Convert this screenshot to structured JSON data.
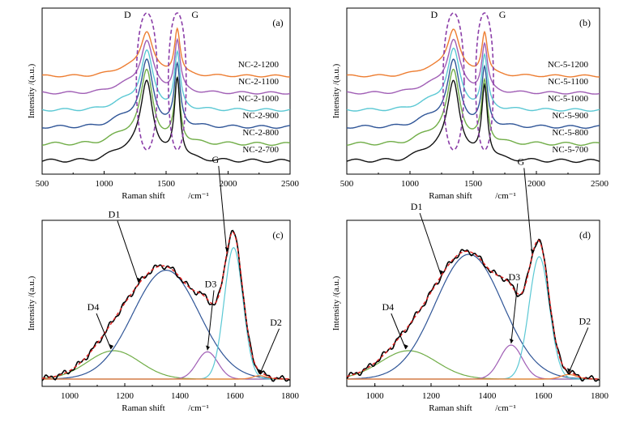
{
  "chart_data": [
    {
      "type": "line",
      "panel_label": "(a)",
      "xlabel": "Raman shift",
      "xunit": "/cm⁻¹",
      "ylabel": "Intensity /(a.u.)",
      "xlim": [
        500,
        2500
      ],
      "xticks": [
        500,
        1000,
        1500,
        2000,
        2500
      ],
      "band_labels": [
        "D",
        "G"
      ],
      "series": [
        {
          "name": "NC-2-1200",
          "color": "#ed7d31",
          "offset": 5,
          "d": 0.85,
          "g": 0.92
        },
        {
          "name": "NC-2-1100",
          "color": "#a05eb5",
          "offset": 4,
          "d": 0.9,
          "g": 0.92
        },
        {
          "name": "NC-2-1000",
          "color": "#5bc8d4",
          "offset": 3,
          "d": 0.92,
          "g": 0.9
        },
        {
          "name": "NC-2-900",
          "color": "#2f5597",
          "offset": 2,
          "d": 0.95,
          "g": 0.9
        },
        {
          "name": "NC-2-800",
          "color": "#70ad47",
          "offset": 1,
          "d": 0.98,
          "g": 0.88
        },
        {
          "name": "NC-2-700",
          "color": "#111111",
          "offset": 0,
          "d": 1.0,
          "g": 1.05
        }
      ]
    },
    {
      "type": "line",
      "panel_label": "(b)",
      "xlabel": "Raman shift",
      "xunit": "/cm⁻¹",
      "ylabel": "Intensity /(a.u.)",
      "xlim": [
        500,
        2500
      ],
      "xticks": [
        500,
        1000,
        1500,
        2000,
        2500
      ],
      "band_labels": [
        "D",
        "G"
      ],
      "series": [
        {
          "name": "NC-5-1200",
          "color": "#ed7d31",
          "offset": 5,
          "d": 0.9,
          "g": 0.85
        },
        {
          "name": "NC-5-1100",
          "color": "#a05eb5",
          "offset": 4,
          "d": 0.92,
          "g": 0.85
        },
        {
          "name": "NC-5-1000",
          "color": "#5bc8d4",
          "offset": 3,
          "d": 0.95,
          "g": 0.85
        },
        {
          "name": "NC-5-900",
          "color": "#2f5597",
          "offset": 2,
          "d": 0.95,
          "g": 0.85
        },
        {
          "name": "NC-5-800",
          "color": "#70ad47",
          "offset": 1,
          "d": 0.98,
          "g": 0.85
        },
        {
          "name": "NC-5-700",
          "color": "#111111",
          "offset": 0,
          "d": 1.0,
          "g": 0.95
        }
      ]
    },
    {
      "type": "line",
      "panel_label": "(c)",
      "xlabel": "Raman shift",
      "xunit": "/cm⁻¹",
      "ylabel": "Intensity /(a.u.)",
      "xlim": [
        900,
        1800
      ],
      "xticks": [
        1000,
        1200,
        1400,
        1600,
        1800
      ],
      "components": [
        {
          "name": "D4",
          "color": "#70ad47",
          "center": 1160,
          "amp": 0.25,
          "width": 95
        },
        {
          "name": "D1",
          "color": "#2f5597",
          "center": 1350,
          "amp": 0.96,
          "width": 120
        },
        {
          "name": "D3",
          "color": "#a05eb5",
          "center": 1500,
          "amp": 0.24,
          "width": 38
        },
        {
          "name": "G",
          "color": "#5bc8d4",
          "center": 1595,
          "amp": 1.16,
          "width": 34
        },
        {
          "name": "D2",
          "color": "#ed7d31",
          "center": 1690,
          "amp": 0.03,
          "width": 25
        }
      ],
      "annotations": [
        "D4",
        "D1",
        "D3",
        "G",
        "D2"
      ]
    },
    {
      "type": "line",
      "panel_label": "(d)",
      "xlabel": "Raman shift",
      "xunit": "/cm⁻¹",
      "ylabel": "Intensity /(a.u.)",
      "xlim": [
        900,
        1800
      ],
      "xticks": [
        1000,
        1200,
        1400,
        1600,
        1800
      ],
      "components": [
        {
          "name": "D4",
          "color": "#70ad47",
          "center": 1120,
          "amp": 0.25,
          "width": 100
        },
        {
          "name": "D1",
          "color": "#2f5597",
          "center": 1335,
          "amp": 1.1,
          "width": 120
        },
        {
          "name": "D3",
          "color": "#a05eb5",
          "center": 1485,
          "amp": 0.3,
          "width": 40
        },
        {
          "name": "G",
          "color": "#5bc8d4",
          "center": 1585,
          "amp": 1.08,
          "width": 36
        },
        {
          "name": "D2",
          "color": "#ed7d31",
          "center": 1690,
          "amp": 0.04,
          "width": 28
        }
      ],
      "annotations": [
        "D4",
        "D1",
        "D3",
        "G",
        "D2"
      ]
    }
  ]
}
